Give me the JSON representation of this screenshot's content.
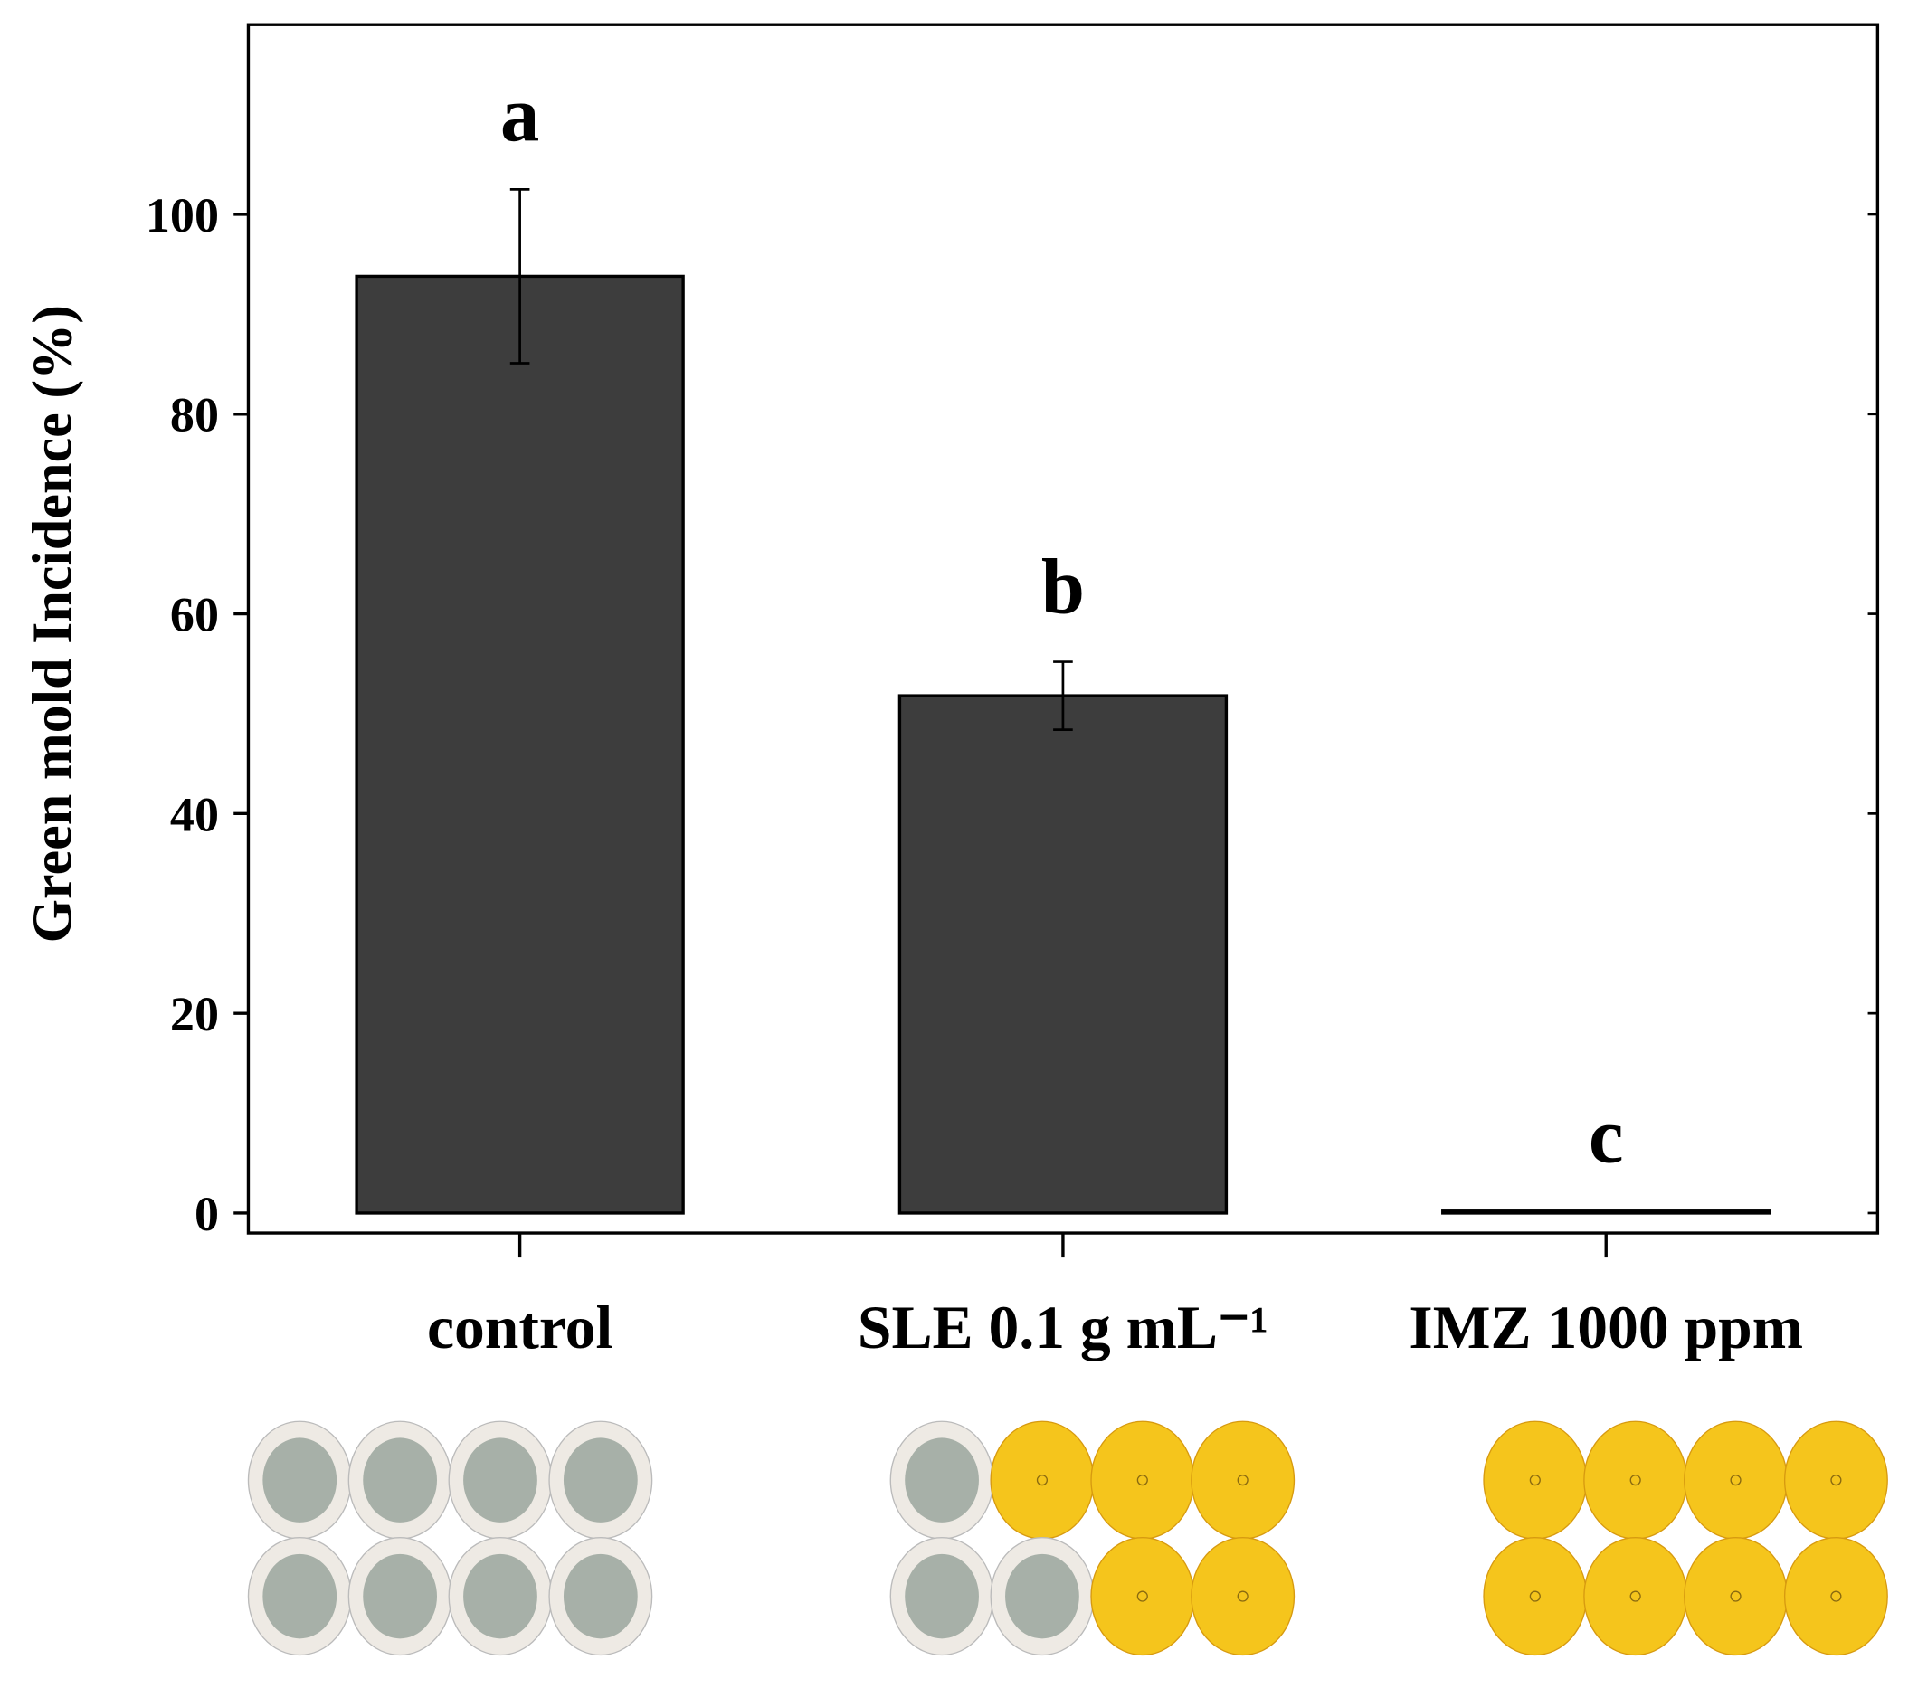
{
  "chart_data": {
    "type": "bar",
    "y_label": "Green mold Incidence (%)",
    "categories": [
      "control",
      "SLE 0.1 g mL⁻¹",
      "IMZ 1000 ppm"
    ],
    "values": [
      93.8,
      51.8,
      0.2
    ],
    "errors": [
      8.7,
      3.4,
      0
    ],
    "annotations": [
      "a",
      "b",
      "c"
    ],
    "color": "#3d3d3d",
    "ylim": [
      -2,
      119
    ],
    "yticks": [
      0,
      20,
      40,
      60,
      80,
      100
    ]
  }
}
